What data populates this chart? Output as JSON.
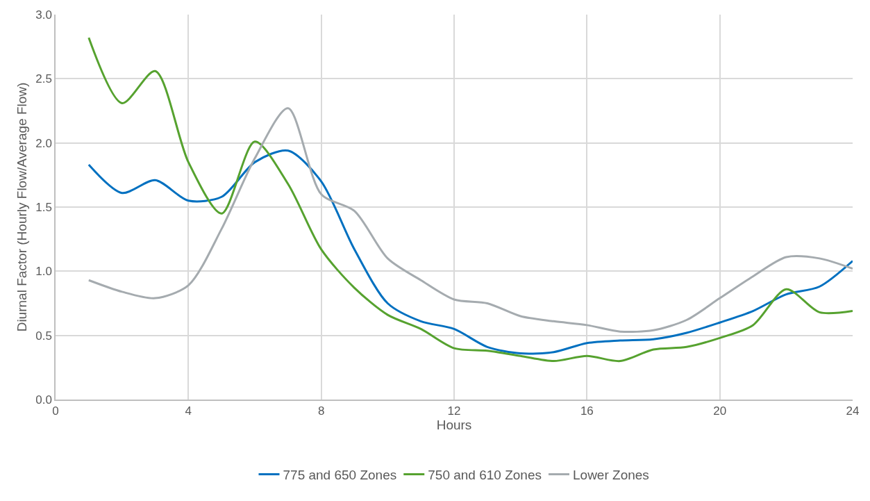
{
  "chart_data": {
    "type": "line",
    "xlabel": "Hours",
    "ylabel": "Diurnal Factor (Hourly Flow/Average Flow)",
    "x": [
      1,
      2,
      3,
      4,
      5,
      6,
      7,
      8,
      9,
      10,
      11,
      12,
      13,
      14,
      15,
      16,
      17,
      18,
      19,
      20,
      21,
      22,
      23,
      24
    ],
    "series": [
      {
        "name": "775 and 650 Zones",
        "color": "#0070c0",
        "values": [
          1.83,
          1.61,
          1.71,
          1.55,
          1.58,
          1.85,
          1.94,
          1.7,
          1.17,
          0.75,
          0.61,
          0.55,
          0.41,
          0.36,
          0.37,
          0.44,
          0.46,
          0.47,
          0.52,
          0.6,
          0.69,
          0.82,
          0.88,
          1.08
        ]
      },
      {
        "name": "750 and 610 Zones",
        "color": "#56a22f",
        "values": [
          2.82,
          2.31,
          2.56,
          1.85,
          1.45,
          2.01,
          1.68,
          1.17,
          0.87,
          0.66,
          0.55,
          0.4,
          0.38,
          0.34,
          0.3,
          0.34,
          0.3,
          0.39,
          0.41,
          0.48,
          0.58,
          0.86,
          0.68,
          0.69
        ]
      },
      {
        "name": "Lower Zones",
        "color": "#a5abaf",
        "values": [
          0.93,
          0.84,
          0.79,
          0.89,
          1.33,
          1.88,
          2.27,
          1.6,
          1.47,
          1.1,
          0.93,
          0.78,
          0.75,
          0.65,
          0.61,
          0.58,
          0.53,
          0.54,
          0.62,
          0.79,
          0.96,
          1.11,
          1.1,
          1.02
        ]
      }
    ],
    "xlim": [
      0,
      24
    ],
    "xticks": [
      0,
      4,
      8,
      12,
      16,
      20,
      24
    ],
    "ylim": [
      0,
      3
    ],
    "yticks": [
      {
        "value": 0,
        "label": "0.0"
      },
      {
        "value": 0.5,
        "label": "0.5"
      },
      {
        "value": 1,
        "label": "1.0"
      },
      {
        "value": 1.5,
        "label": "1.5"
      },
      {
        "value": 2,
        "label": "2.0"
      },
      {
        "value": 2.5,
        "label": "2.5"
      },
      {
        "value": 3,
        "label": "3.0"
      }
    ],
    "grid": true,
    "legend": "bottom",
    "marker": "none",
    "line_style": "solid"
  }
}
